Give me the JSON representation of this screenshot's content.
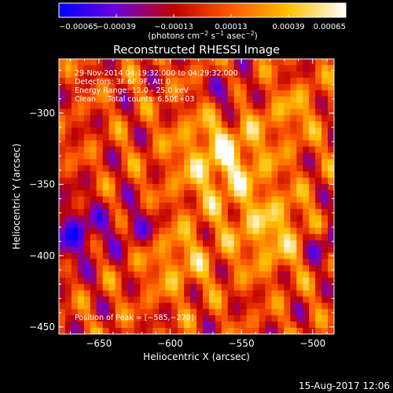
{
  "chart_data": {
    "type": "heatmap",
    "title": "Reconstructed RHESSI Image",
    "xlabel": "Heliocentric X (arcsec)",
    "ylabel": "Heliocentric Y (arcsec)",
    "xlim": [
      -678,
      -485
    ],
    "ylim": [
      -455,
      -262
    ],
    "x_ticks": [
      -650,
      -600,
      -550,
      -500
    ],
    "y_ticks": [
      -450,
      -400,
      -350,
      -300
    ],
    "x_tick_labels": [
      "−650",
      "−600",
      "−550",
      "−500"
    ],
    "y_tick_labels": [
      "−450",
      "−400",
      "−350",
      "−300"
    ],
    "colorbar": {
      "range": [
        -0.00065,
        0.00065
      ],
      "tick_values": [
        -0.00065,
        -0.00039,
        -0.00013,
        0.00013,
        0.00039,
        0.00065
      ],
      "tick_labels": [
        "−0.00065",
        "−0.00039",
        "−0.00013",
        "0.00013",
        "0.00039",
        "0.00065"
      ],
      "unit_prefix": "(photons cm",
      "unit_exp1": "−2",
      "unit_mid1": " s",
      "unit_exp2": "−1",
      "unit_mid2": " asec",
      "unit_exp3": "−2",
      "unit_suffix": ")",
      "colors": [
        "#0000ff",
        "#6f00d8",
        "#c00000",
        "#ff5a00",
        "#ffc000",
        "#ffffff"
      ]
    },
    "annotations": [
      "29-Nov-2014 04:19:32.000 to 04:29:32.000",
      "Detectors: 3F 6F 9F, Att 0",
      "Energy Range: 12.0 - 25.0 keV",
      "Clean     Total counts: 6.50E+03"
    ],
    "peak_label": "Position of Peak = [−585,−270]",
    "peak_position": [
      -585,
      -270
    ],
    "grid": false
  },
  "footer": {
    "date": "15-Aug-2017 12:06"
  }
}
